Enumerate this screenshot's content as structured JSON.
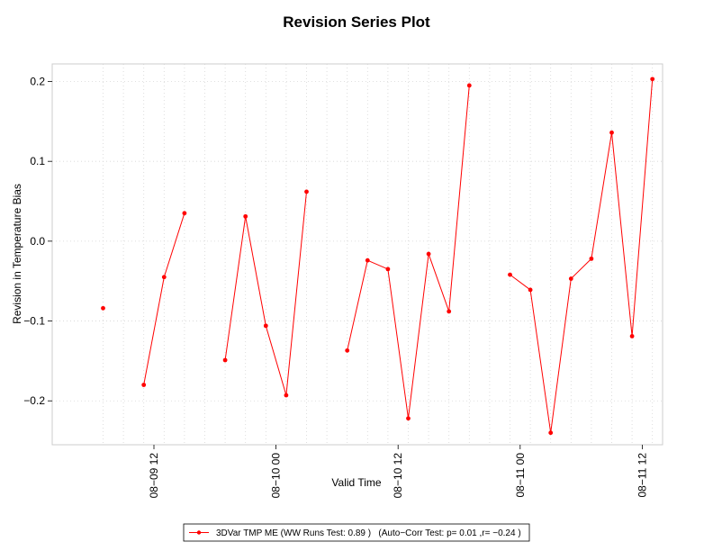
{
  "chart_data": {
    "type": "line",
    "title": "Revision Series Plot",
    "xlabel": "Valid Time",
    "ylabel": "Revision in Temperature Bias",
    "x_tick_labels": [
      "08−09 12",
      "08−10 00",
      "08−10 12",
      "08−11 00",
      "08−11 12"
    ],
    "x_tick_hours": [
      12,
      24,
      36,
      48,
      60
    ],
    "y_ticks": [
      -0.2,
      -0.1,
      0.0,
      0.1,
      0.2
    ],
    "y_tick_labels": [
      "−0.2",
      "−0.1",
      "0.0",
      "0.1",
      "0.2"
    ],
    "xlim_hours": [
      2.0,
      62.0
    ],
    "ylim": [
      -0.255,
      0.222
    ],
    "grid": true,
    "legend_position": "bottom-center",
    "series": [
      {
        "name": "3DVar TMP ME (WW Runs Test: 0.89 )   (Auto−Corr Test: p= 0.01 ,r= −0.24 )",
        "color": "#ff0000",
        "x_hours": [
          7,
          9,
          11,
          13,
          15,
          17,
          19,
          21,
          23,
          25,
          27,
          29,
          31,
          33,
          35,
          37,
          39,
          41,
          43,
          45,
          47,
          49,
          51,
          53,
          55,
          57,
          59,
          61
        ],
        "y": [
          -0.084,
          null,
          -0.18,
          -0.045,
          0.035,
          null,
          -0.149,
          0.031,
          -0.106,
          -0.193,
          0.062,
          null,
          -0.137,
          -0.024,
          -0.035,
          -0.222,
          -0.016,
          -0.088,
          0.195,
          null,
          -0.042,
          -0.061,
          -0.24,
          -0.047,
          -0.022,
          0.136,
          -0.119,
          0.203
        ]
      }
    ]
  }
}
